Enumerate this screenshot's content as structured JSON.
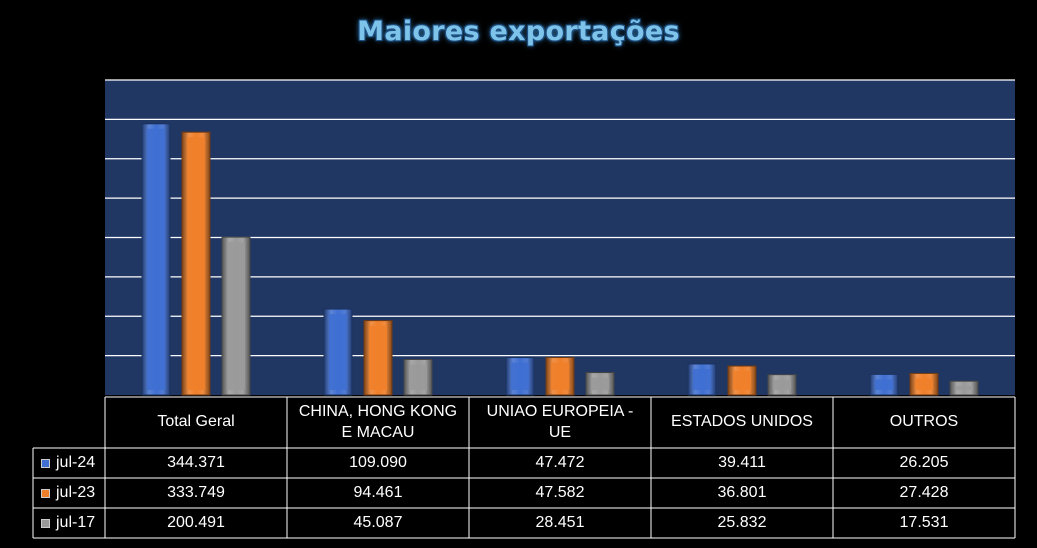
{
  "chart_data": {
    "type": "bar",
    "title": "Maiores exportações",
    "categories": [
      "Total Geral",
      "CHINA, HONG KONG E MACAU",
      "UNIAO EUROPEIA - UE",
      "ESTADOS UNIDOS",
      "OUTROS"
    ],
    "series": [
      {
        "name": "jul-24",
        "color": "#3f6fd1",
        "values": [
          344.371,
          109.09,
          47.472,
          39.411,
          26.205
        ],
        "labels": [
          "344.371",
          "109.090",
          "47.472",
          "39.411",
          "26.205"
        ]
      },
      {
        "name": "jul-23",
        "color": "#ef7f2a",
        "values": [
          333.749,
          94.461,
          47.582,
          36.801,
          27.428
        ],
        "labels": [
          "333.749",
          "94.461",
          "47.582",
          "36.801",
          "27.428"
        ]
      },
      {
        "name": "jul-17",
        "color": "#9a9a9a",
        "values": [
          200.491,
          45.087,
          28.451,
          25.832,
          17.531
        ],
        "labels": [
          "200.491",
          "45.087",
          "28.451",
          "25.832",
          "17.531"
        ]
      }
    ],
    "ylim": [
      0,
      400
    ],
    "grid": true,
    "legend": "data table"
  }
}
